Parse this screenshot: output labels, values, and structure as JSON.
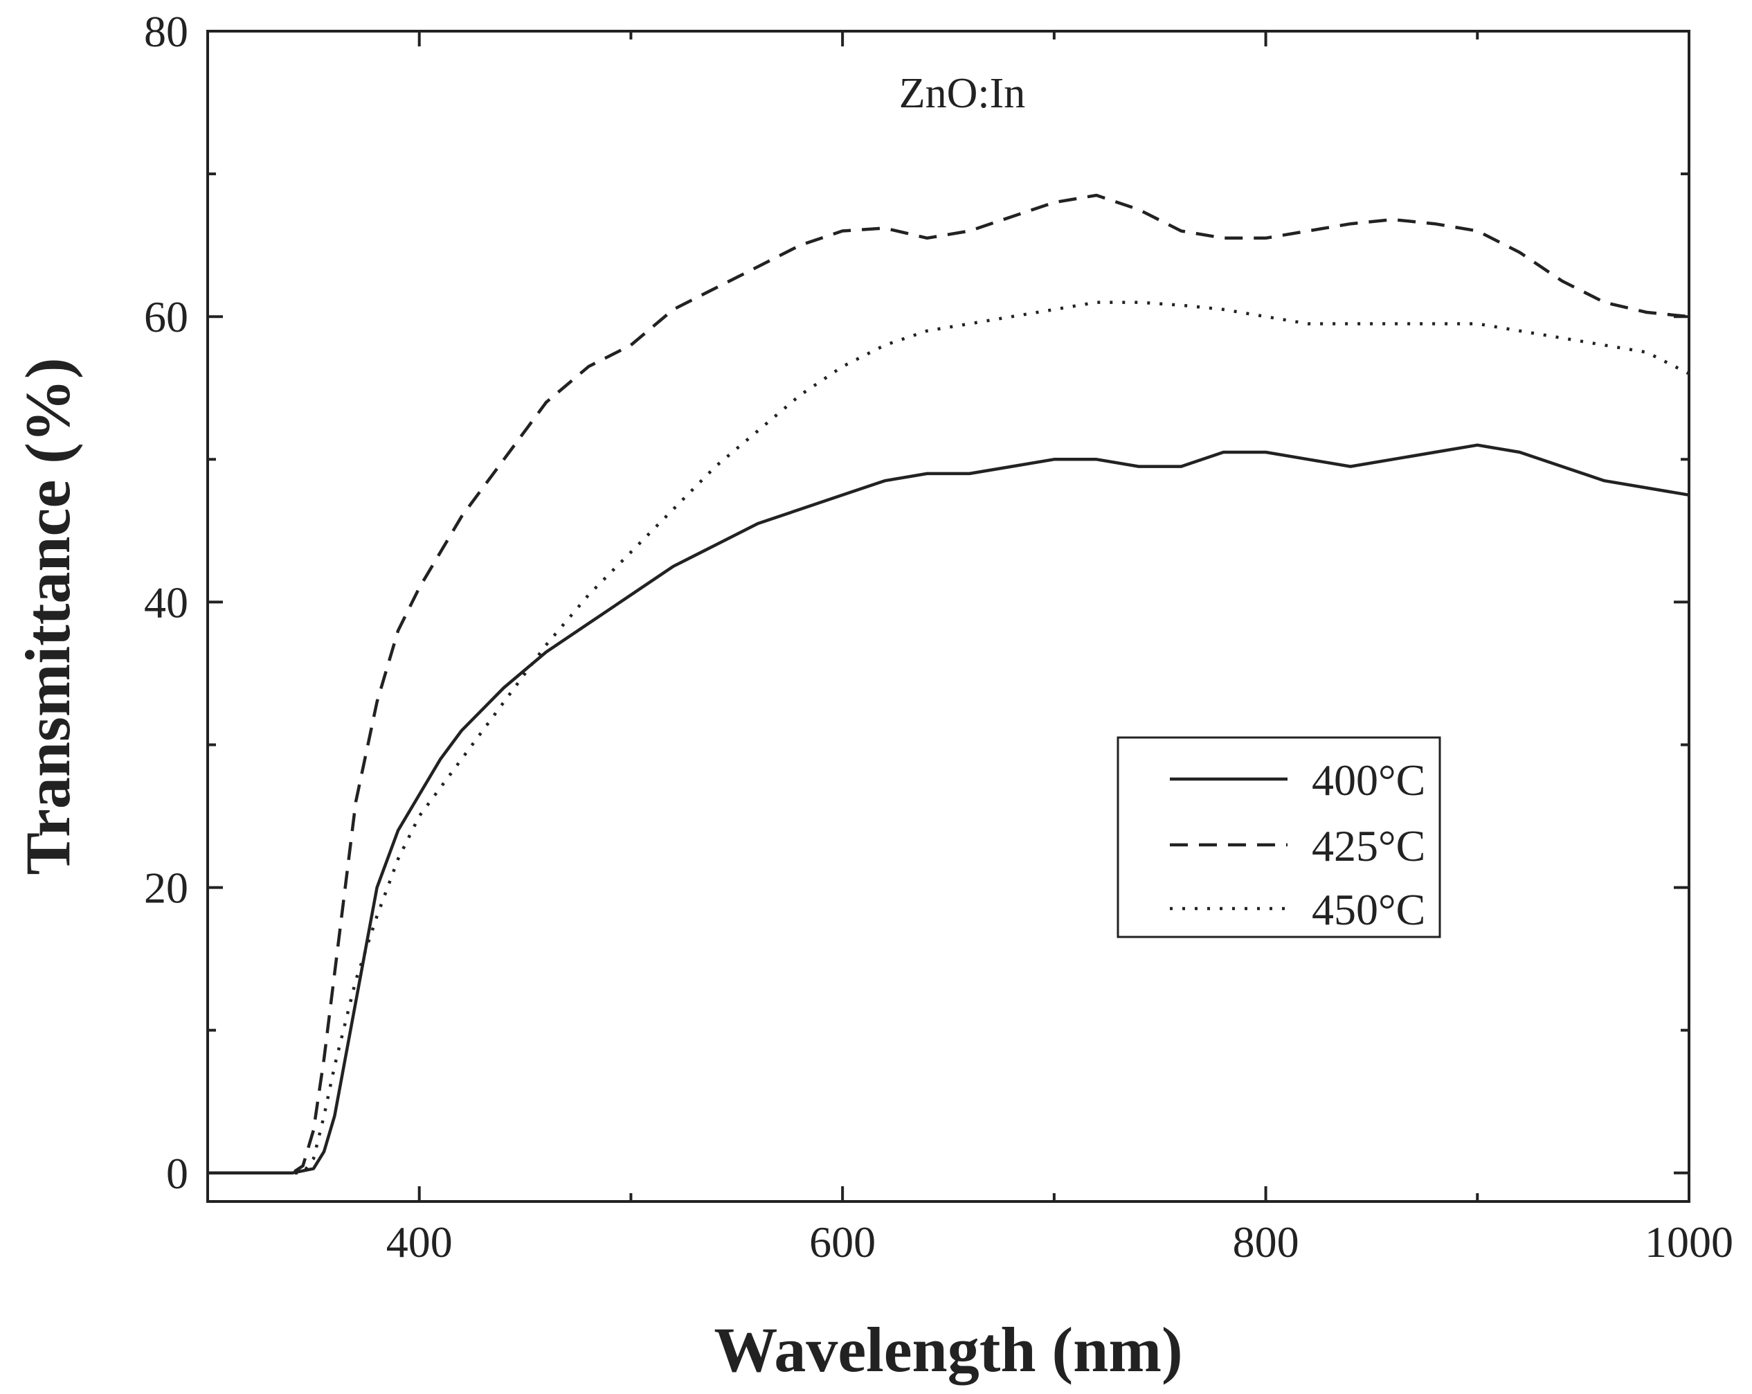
{
  "chart_data": {
    "type": "line",
    "title": "",
    "annotation": "ZnO:In",
    "xlabel": "Wavelength (nm)",
    "ylabel": "Transmittance (%)",
    "xlim": [
      300,
      1000
    ],
    "ylim": [
      -2,
      80
    ],
    "xticks": [
      400,
      600,
      800,
      1000
    ],
    "xtick_labels": [
      "400",
      "600",
      "800",
      "1000"
    ],
    "xminor_ticks": [
      500,
      700,
      900
    ],
    "yticks": [
      0,
      20,
      40,
      60,
      80
    ],
    "ytick_labels": [
      "0",
      "20",
      "40",
      "60",
      "80"
    ],
    "yminor_ticks": [
      10,
      30,
      50,
      70
    ],
    "legend_position": "center-right",
    "series": [
      {
        "name": "400°C",
        "style": "solid",
        "x": [
          300,
          340,
          350,
          355,
          360,
          365,
          370,
          375,
          380,
          390,
          400,
          410,
          420,
          440,
          460,
          480,
          500,
          520,
          540,
          560,
          580,
          600,
          620,
          640,
          660,
          680,
          700,
          720,
          740,
          760,
          780,
          800,
          820,
          840,
          860,
          880,
          900,
          920,
          940,
          960,
          980,
          1000
        ],
        "values": [
          0,
          0,
          0.3,
          1.5,
          4,
          8,
          12,
          16,
          20,
          24,
          26.5,
          29,
          31,
          34,
          36.5,
          38.5,
          40.5,
          42.5,
          44,
          45.5,
          46.5,
          47.5,
          48.5,
          49,
          49,
          49.5,
          50,
          50,
          49.5,
          49.5,
          50.5,
          50.5,
          50,
          49.5,
          50,
          50.5,
          51,
          50.5,
          49.5,
          48.5,
          48,
          47.5
        ]
      },
      {
        "name": "425°C",
        "style": "dashed",
        "x": [
          300,
          340,
          345,
          350,
          355,
          360,
          365,
          370,
          380,
          390,
          400,
          420,
          440,
          460,
          480,
          500,
          520,
          540,
          560,
          580,
          600,
          620,
          640,
          660,
          680,
          700,
          720,
          740,
          760,
          780,
          800,
          820,
          840,
          860,
          880,
          900,
          920,
          940,
          960,
          980,
          1000
        ],
        "values": [
          0,
          0,
          0.5,
          3,
          8,
          14,
          20,
          26,
          33,
          38,
          41,
          46,
          50,
          54,
          56.5,
          58,
          60.5,
          62,
          63.5,
          65,
          66,
          66.2,
          65.5,
          66,
          67,
          68,
          68.5,
          67.5,
          66,
          65.5,
          65.5,
          66,
          66.5,
          66.8,
          66.5,
          66,
          64.5,
          62.5,
          61,
          60.3,
          60
        ]
      },
      {
        "name": "450°C",
        "style": "dotted",
        "x": [
          300,
          345,
          350,
          355,
          360,
          365,
          370,
          380,
          390,
          400,
          420,
          440,
          460,
          480,
          500,
          520,
          540,
          560,
          580,
          600,
          620,
          640,
          660,
          680,
          700,
          720,
          740,
          760,
          780,
          800,
          820,
          840,
          860,
          880,
          900,
          920,
          940,
          960,
          980,
          1000
        ],
        "values": [
          0,
          0,
          1,
          4,
          7.5,
          10.5,
          13.5,
          18,
          22,
          25,
          29,
          33,
          37,
          40.5,
          43.5,
          46.5,
          49.5,
          52,
          54.5,
          56.5,
          58,
          59,
          59.5,
          60,
          60.5,
          61,
          61,
          60.8,
          60.5,
          60,
          59.5,
          59.5,
          59.5,
          59.5,
          59.5,
          59,
          58.5,
          58,
          57.5,
          56
        ]
      }
    ]
  }
}
